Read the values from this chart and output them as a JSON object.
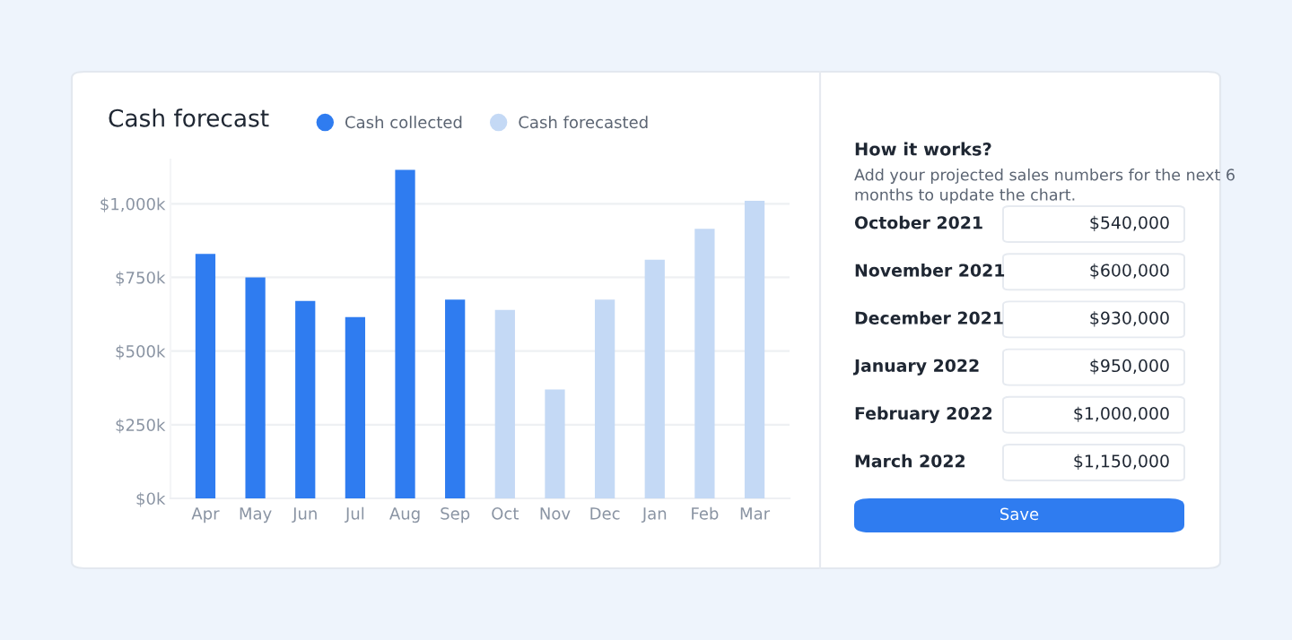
{
  "chart_data": [
    {
      "type": "bar",
      "title": "Cash forecast",
      "categories": [
        "Apr",
        "May",
        "Jun",
        "Jul",
        "Aug",
        "Sep",
        "Oct",
        "Nov",
        "Dec",
        "Jan",
        "Feb",
        "Mar"
      ],
      "series": [
        {
          "name": "Cash collected",
          "color": "#2f7cf0",
          "values": [
            830,
            750,
            670,
            615,
            1115,
            675,
            null,
            null,
            null,
            null,
            null,
            null
          ]
        },
        {
          "name": "Cash forecasted",
          "color": "#c4d9f5",
          "values": [
            null,
            null,
            null,
            null,
            null,
            null,
            640,
            370,
            675,
            810,
            915,
            1010
          ]
        }
      ],
      "ylim": [
        0,
        1150
      ],
      "yticks": [
        {
          "value": 0,
          "label": "$0k"
        },
        {
          "value": 250,
          "label": "$250k"
        },
        {
          "value": 500,
          "label": "$500k"
        },
        {
          "value": 750,
          "label": "$750k"
        },
        {
          "value": 1000,
          "label": "$1,000k"
        }
      ],
      "grid": "y",
      "legend": "top"
    },
    {
      "type": "other",
      "title": "How it works?",
      "subtitle": "Add your projected sales numbers for the next 6 months to update the chart.",
      "categories": [
        "October 2021",
        "November 2021",
        "December 2021",
        "January 2022",
        "February 2022",
        "March 2022"
      ],
      "value_labels": [
        "$540,000",
        "$600,000",
        "$930,000",
        "$950,000",
        "$1,000,000",
        "$1,150,000"
      ],
      "annotations": [
        "Save"
      ]
    }
  ]
}
